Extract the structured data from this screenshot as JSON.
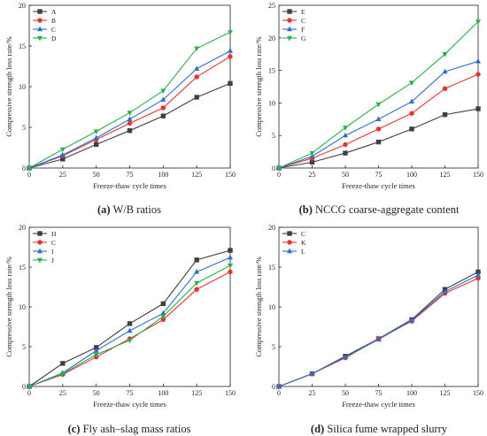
{
  "chart_data": [
    {
      "type": "line",
      "caption_letter": "(a)",
      "caption_text": " W/B ratios",
      "xlabel": "Freeze-thaw cycle times",
      "ylabel": "Compressive strength loss rate/%",
      "x": [
        0,
        25,
        50,
        75,
        100,
        125,
        150
      ],
      "xlim": [
        0,
        150
      ],
      "ylim": [
        0,
        20
      ],
      "xticks": [
        "0",
        "25",
        "50",
        "75",
        "100",
        "125",
        "150"
      ],
      "yticks": [
        "0",
        "5",
        "10",
        "15",
        "20"
      ],
      "legend_position": "top-left",
      "series": [
        {
          "name": "A",
          "color": "#404040",
          "marker": "square",
          "values": [
            0,
            1.1,
            2.9,
            4.6,
            6.4,
            8.7,
            10.4
          ]
        },
        {
          "name": "B",
          "color": "#e8322e",
          "marker": "circle",
          "values": [
            0,
            1.5,
            3.5,
            5.5,
            7.4,
            11.2,
            13.7
          ]
        },
        {
          "name": "C",
          "color": "#2a6fd6",
          "marker": "triangle-up",
          "values": [
            0,
            1.6,
            3.7,
            6.0,
            8.4,
            12.2,
            14.4
          ]
        },
        {
          "name": "D",
          "color": "#2bb04a",
          "marker": "triangle-down",
          "values": [
            0,
            2.3,
            4.5,
            6.8,
            9.5,
            14.7,
            16.7
          ]
        }
      ]
    },
    {
      "type": "line",
      "caption_letter": "(b)",
      "caption_text": " NCCG coarse-aggregate content",
      "xlabel": "Freeze-thaw cycle times",
      "ylabel": "Compressive strength loss rate/%",
      "x": [
        0,
        25,
        50,
        75,
        100,
        125,
        150
      ],
      "xlim": [
        0,
        150
      ],
      "ylim": [
        0,
        25
      ],
      "xticks": [
        "0",
        "25",
        "50",
        "75",
        "100",
        "125",
        "150"
      ],
      "yticks": [
        "0",
        "5",
        "10",
        "15",
        "20",
        "25"
      ],
      "legend_position": "top-left",
      "series": [
        {
          "name": "E",
          "color": "#404040",
          "marker": "square",
          "values": [
            0,
            0.9,
            2.3,
            4.0,
            6.0,
            8.2,
            9.1
          ]
        },
        {
          "name": "C",
          "color": "#e8322e",
          "marker": "circle",
          "values": [
            0,
            1.5,
            3.6,
            6.0,
            8.4,
            12.2,
            14.4
          ]
        },
        {
          "name": "F",
          "color": "#2a6fd6",
          "marker": "triangle-up",
          "values": [
            0,
            1.8,
            5.0,
            7.5,
            10.2,
            14.8,
            16.4
          ]
        },
        {
          "name": "G",
          "color": "#2bb04a",
          "marker": "triangle-down",
          "values": [
            0,
            2.3,
            6.2,
            9.8,
            13.1,
            17.5,
            22.5
          ]
        }
      ]
    },
    {
      "type": "line",
      "caption_letter": "(c)",
      "caption_text": " Fly ash–slag mass ratios",
      "xlabel": "Freeze-thaw cycle times",
      "ylabel": "Compressive strength loss rate/%",
      "x": [
        0,
        25,
        50,
        75,
        100,
        125,
        150
      ],
      "xlim": [
        0,
        150
      ],
      "ylim": [
        0,
        20
      ],
      "xticks": [
        "0",
        "25",
        "50",
        "75",
        "100",
        "125",
        "150"
      ],
      "yticks": [
        "0",
        "5",
        "10",
        "15",
        "20"
      ],
      "legend_position": "top-left",
      "series": [
        {
          "name": "H",
          "color": "#404040",
          "marker": "square",
          "values": [
            0,
            2.9,
            4.9,
            7.9,
            10.4,
            15.9,
            17.1
          ]
        },
        {
          "name": "C",
          "color": "#e8322e",
          "marker": "circle",
          "values": [
            0,
            1.5,
            3.7,
            6.0,
            8.4,
            12.2,
            14.4
          ]
        },
        {
          "name": "I",
          "color": "#2a6fd6",
          "marker": "triangle-up",
          "values": [
            0,
            1.7,
            4.5,
            7.0,
            9.2,
            14.4,
            16.2
          ]
        },
        {
          "name": "J",
          "color": "#2bb04a",
          "marker": "triangle-down",
          "values": [
            0,
            1.6,
            4.0,
            5.8,
            8.8,
            13.0,
            15.2
          ]
        }
      ]
    },
    {
      "type": "line",
      "caption_letter": "(d)",
      "caption_text": " Silica fume wrapped slurry",
      "xlabel": "Freeze-thaw cycle times",
      "ylabel": "Compressive strength loss rate/%",
      "x": [
        0,
        25,
        50,
        75,
        100,
        125,
        150
      ],
      "xlim": [
        0,
        150
      ],
      "ylim": [
        0,
        20
      ],
      "xticks": [
        "0",
        "25",
        "50",
        "75",
        "100",
        "125",
        "150"
      ],
      "yticks": [
        "0",
        "5",
        "10",
        "15",
        "20"
      ],
      "legend_position": "top-left",
      "series": [
        {
          "name": "C",
          "color": "#404040",
          "marker": "square",
          "values": [
            0,
            1.6,
            3.8,
            6.0,
            8.4,
            12.2,
            14.4
          ]
        },
        {
          "name": "K",
          "color": "#e8322e",
          "marker": "circle",
          "values": [
            0,
            1.6,
            3.6,
            6.0,
            8.2,
            11.7,
            13.6
          ]
        },
        {
          "name": "L",
          "color": "#2a6fd6",
          "marker": "triangle-up",
          "values": [
            0,
            1.6,
            3.7,
            5.9,
            8.3,
            11.9,
            14.0
          ]
        }
      ]
    }
  ]
}
